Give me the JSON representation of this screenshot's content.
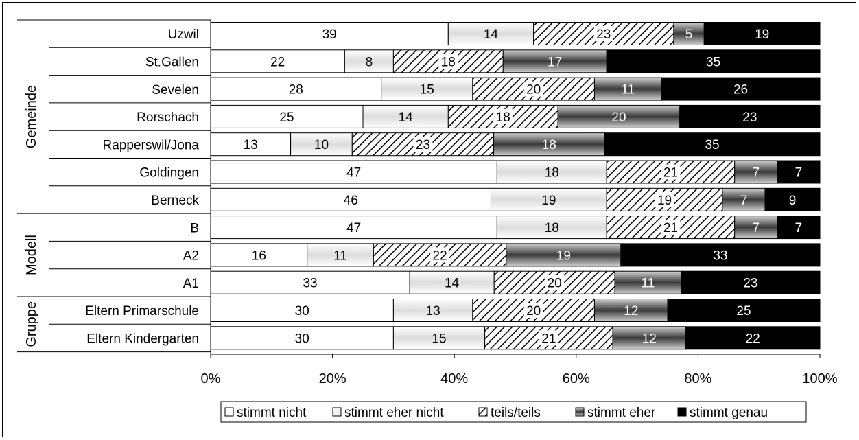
{
  "chart_data": {
    "type": "bar",
    "orientation": "horizontal",
    "stacked": "percent",
    "groups": [
      {
        "label": "Gemeinde",
        "categories": [
          "Uzwil",
          "St.Gallen",
          "Sevelen",
          "Rorschach",
          "Rapperswil/Jona",
          "Goldingen",
          "Berneck"
        ]
      },
      {
        "label": "Modell",
        "categories": [
          "B",
          "A2",
          "A1"
        ]
      },
      {
        "label": "Gruppe",
        "categories": [
          "Eltern Primarschule",
          "Eltern Kindergarten"
        ]
      }
    ],
    "categories": [
      "Uzwil",
      "St.Gallen",
      "Sevelen",
      "Rorschach",
      "Rapperswil/Jona",
      "Goldingen",
      "Berneck",
      "B",
      "A2",
      "A1",
      "Eltern Primarschule",
      "Eltern Kindergarten"
    ],
    "series": [
      {
        "name": "stimmt nicht",
        "values": [
          39,
          22,
          28,
          25,
          13,
          47,
          46,
          47,
          16,
          33,
          30,
          30
        ]
      },
      {
        "name": "stimmt eher nicht",
        "values": [
          14,
          8,
          15,
          14,
          10,
          18,
          19,
          18,
          11,
          14,
          13,
          15
        ]
      },
      {
        "name": "teils/teils",
        "values": [
          23,
          18,
          20,
          18,
          23,
          21,
          19,
          21,
          22,
          20,
          20,
          21
        ]
      },
      {
        "name": "stimmt eher",
        "values": [
          5,
          17,
          11,
          20,
          18,
          7,
          7,
          7,
          19,
          11,
          12,
          12
        ]
      },
      {
        "name": "stimmt genau",
        "values": [
          19,
          35,
          26,
          23,
          35,
          7,
          9,
          7,
          33,
          23,
          25,
          22
        ]
      }
    ],
    "x_ticks": [
      "0%",
      "20%",
      "40%",
      "60%",
      "80%",
      "100%"
    ],
    "xlim": [
      0,
      100
    ],
    "grid": false,
    "legend_position": "bottom",
    "colors": {
      "stimmt nicht": "#ffffff",
      "stimmt eher nicht": "#e6e6e6",
      "teils/teils": "#ffffff",
      "stimmt eher": "#6f6f6f",
      "stimmt genau": "#000000"
    },
    "label_colors": {
      "stimmt nicht": "#000000",
      "stimmt eher nicht": "#000000",
      "teils/teils": "#000000",
      "stimmt eher": "#ffffff",
      "stimmt genau": "#ffffff"
    }
  }
}
